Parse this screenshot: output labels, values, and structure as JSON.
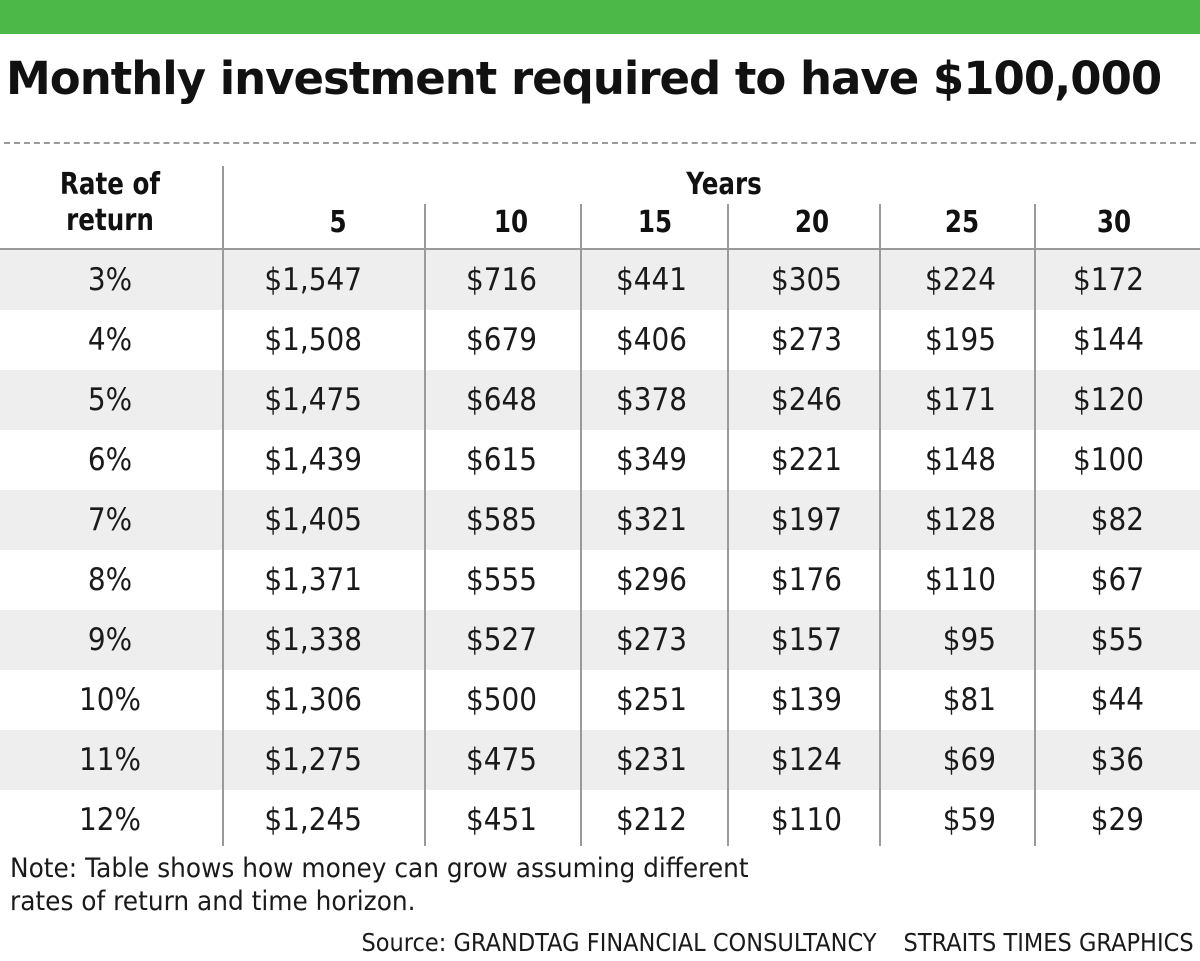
{
  "title": "Monthly investment required to have $100,000",
  "colors": {
    "accent_bar": "#4cb848",
    "row_band": "#eeeeee",
    "rule": "#9a9a9a",
    "text": "#1a1a1a"
  },
  "chart_data": {
    "type": "table",
    "title": "Monthly investment required to have $100,000",
    "row_header_label": "Rate of return",
    "row_header_lines": [
      "Rate of",
      "return"
    ],
    "column_group_label": "Years",
    "columns": [
      "5",
      "10",
      "15",
      "20",
      "25",
      "30"
    ],
    "rows": [
      {
        "rate": "3%",
        "values": [
          "$1,547",
          "$716",
          "$441",
          "$305",
          "$224",
          "$172"
        ]
      },
      {
        "rate": "4%",
        "values": [
          "$1,508",
          "$679",
          "$406",
          "$273",
          "$195",
          "$144"
        ]
      },
      {
        "rate": "5%",
        "values": [
          "$1,475",
          "$648",
          "$378",
          "$246",
          "$171",
          "$120"
        ]
      },
      {
        "rate": "6%",
        "values": [
          "$1,439",
          "$615",
          "$349",
          "$221",
          "$148",
          "$100"
        ]
      },
      {
        "rate": "7%",
        "values": [
          "$1,405",
          "$585",
          "$321",
          "$197",
          "$128",
          "$82"
        ]
      },
      {
        "rate": "8%",
        "values": [
          "$1,371",
          "$555",
          "$296",
          "$176",
          "$110",
          "$67"
        ]
      },
      {
        "rate": "9%",
        "values": [
          "$1,338",
          "$527",
          "$273",
          "$157",
          "$95",
          "$55"
        ]
      },
      {
        "rate": "10%",
        "values": [
          "$1,306",
          "$500",
          "$251",
          "$139",
          "$81",
          "$44"
        ]
      },
      {
        "rate": "11%",
        "values": [
          "$1,275",
          "$475",
          "$231",
          "$124",
          "$69",
          "$36"
        ]
      },
      {
        "rate": "12%",
        "values": [
          "$1,245",
          "$451",
          "$212",
          "$110",
          "$59",
          "$29"
        ]
      }
    ]
  },
  "note": "Note:  Table shows how money can grow assuming different rates of return and time horizon.",
  "source": "Source: GRANDTAG FINANCIAL CONSULTANCY",
  "credit": "STRAITS TIMES GRAPHICS"
}
